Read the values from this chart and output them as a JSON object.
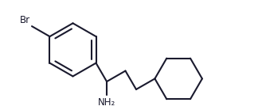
{
  "background_color": "#ffffff",
  "line_color": "#1a1a2e",
  "text_color": "#1a1a2e",
  "br_label": "Br",
  "nh2_label": "NH₂",
  "line_width": 1.5,
  "figsize": [
    3.29,
    1.39
  ],
  "dpi": 100,
  "xlim": [
    0.0,
    5.8
  ],
  "ylim": [
    -0.9,
    1.6
  ]
}
